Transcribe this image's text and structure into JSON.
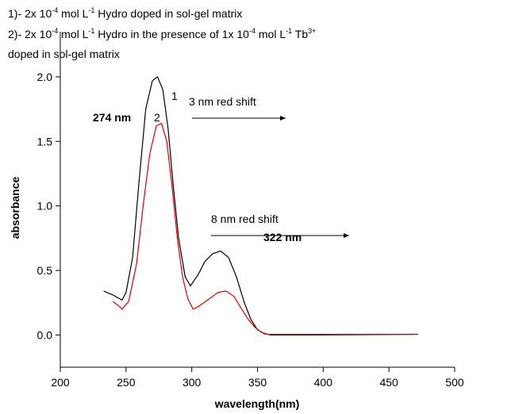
{
  "chart_data": {
    "type": "line",
    "legend_lines": [
      [
        "1)- 2x 10",
        "-4",
        " mol L",
        "-1",
        " Hydro doped in sol-gel matrix"
      ],
      [
        "2)- 2x 10",
        "-4",
        " mol L",
        "-1",
        " Hydro in the presence of 1x 10",
        "-4",
        " mol L",
        "-1",
        " Tb",
        "3+"
      ],
      [
        "doped in sol-gel matrix"
      ]
    ],
    "x_label": "wavelength(nm)",
    "y_label": "absorbance",
    "annotations": [
      "274 nm",
      "3 nm red shift",
      "8 nm red shift",
      "322 nm"
    ],
    "xlim": [
      200,
      500
    ],
    "xticks": [
      200,
      250,
      300,
      350,
      400,
      450,
      500
    ],
    "ylim": [
      -0.25,
      2.35
    ],
    "yticks": [
      {
        "value": 0,
        "label": "0.0"
      },
      {
        "value": 0.5,
        "label": "0.5"
      },
      {
        "value": 1,
        "label": "1.0"
      },
      {
        "value": 1.5,
        "label": "1.5"
      },
      {
        "value": 2,
        "label": "2.0"
      }
    ],
    "series": [
      {
        "name": "1",
        "color": "#000000",
        "x": [
          233,
          240,
          247,
          250,
          255,
          260,
          265,
          270,
          274,
          278,
          282,
          286,
          290,
          295,
          299,
          305,
          310,
          316,
          322,
          328,
          334,
          340,
          345,
          350,
          355,
          360,
          400,
          472
        ],
        "values": [
          0.34,
          0.31,
          0.27,
          0.33,
          0.6,
          1.2,
          1.75,
          1.97,
          2.0,
          1.9,
          1.6,
          1.15,
          0.75,
          0.45,
          0.38,
          0.47,
          0.57,
          0.63,
          0.65,
          0.6,
          0.45,
          0.25,
          0.12,
          0.04,
          0.01,
          0.0,
          0.0,
          0.005
        ]
      },
      {
        "name": "2",
        "color": "#e00000",
        "x": [
          240,
          245,
          247,
          252,
          258,
          263,
          268,
          273,
          277,
          281,
          285,
          289,
          293,
          297,
          301,
          305,
          312,
          320,
          326,
          332,
          338,
          343,
          348,
          353,
          358,
          400,
          472
        ],
        "values": [
          0.26,
          0.22,
          0.2,
          0.26,
          0.55,
          1.0,
          1.4,
          1.62,
          1.64,
          1.5,
          1.15,
          0.75,
          0.45,
          0.28,
          0.2,
          0.22,
          0.27,
          0.33,
          0.34,
          0.3,
          0.2,
          0.12,
          0.06,
          0.02,
          0.005,
          0.005,
          0.005
        ]
      }
    ]
  }
}
